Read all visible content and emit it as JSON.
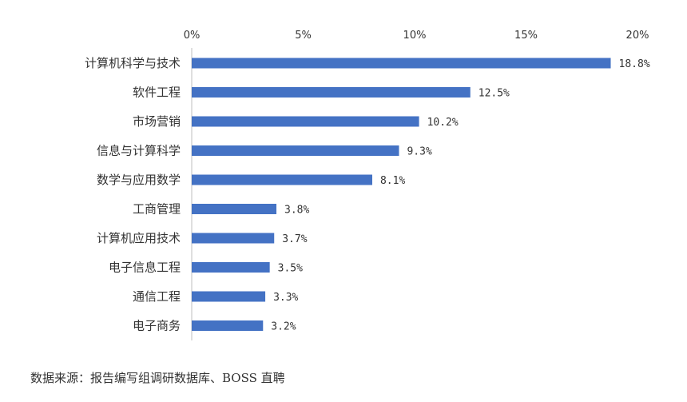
{
  "chart_data": {
    "type": "bar",
    "orientation": "horizontal",
    "categories": [
      "计算机科学与技术",
      "软件工程",
      "市场营销",
      "信息与计算科学",
      "数学与应用数学",
      "工商管理",
      "计算机应用技术",
      "电子信息工程",
      "通信工程",
      "电子商务"
    ],
    "values": [
      18.8,
      12.5,
      10.2,
      9.3,
      8.1,
      3.8,
      3.7,
      3.5,
      3.3,
      3.2
    ],
    "value_labels": [
      "18.8%",
      "12.5%",
      "10.2%",
      "9.3%",
      "8.1%",
      "3.8%",
      "3.7%",
      "3.5%",
      "3.3%",
      "3.2%"
    ],
    "xticks": [
      "0%",
      "5%",
      "10%",
      "15%",
      "20%"
    ],
    "xtick_values": [
      0,
      5,
      10,
      15,
      20
    ],
    "xlim": [
      0,
      20
    ],
    "axis_position": "top",
    "grid": false,
    "legend": "none",
    "bar_color": "#4472C4",
    "title": "",
    "xlabel": "",
    "ylabel": ""
  },
  "source_note": "数据来源：报告编写组调研数据库、BOSS 直聘"
}
